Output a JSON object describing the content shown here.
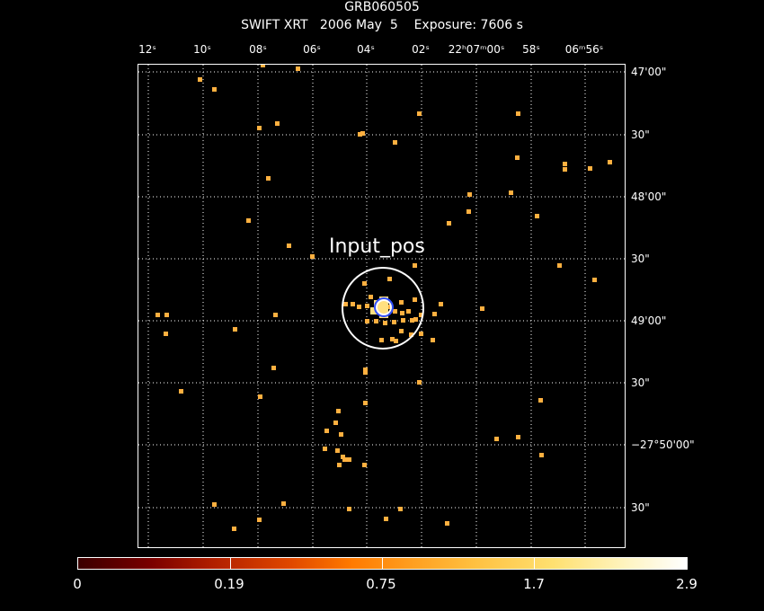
{
  "title": "GRB060505",
  "subtitle": "SWIFT XRT   2006 May  5    Exposure: 7606 s",
  "top_labels": [
    "12ˢ",
    "10ˢ",
    "08ˢ",
    "06ˢ",
    "04ˢ",
    "02ˢ",
    "22ʰ07ᵐ00ˢ",
    "58ˢ",
    "06ᵐ56ˢ"
  ],
  "right_labels": [
    "47'00\"",
    "30\"",
    "48'00\"",
    "30\"",
    "49'00\"",
    "30\"",
    "−27°50'00\"",
    "30\""
  ],
  "marker_label": "Input_pos",
  "colorbar": {
    "labels": [
      "0",
      "0.19",
      "0.75",
      "1.7",
      "2.9"
    ]
  },
  "colors": {
    "event": "#ffb040",
    "grid": "#ffffff",
    "background": "#000000"
  }
}
